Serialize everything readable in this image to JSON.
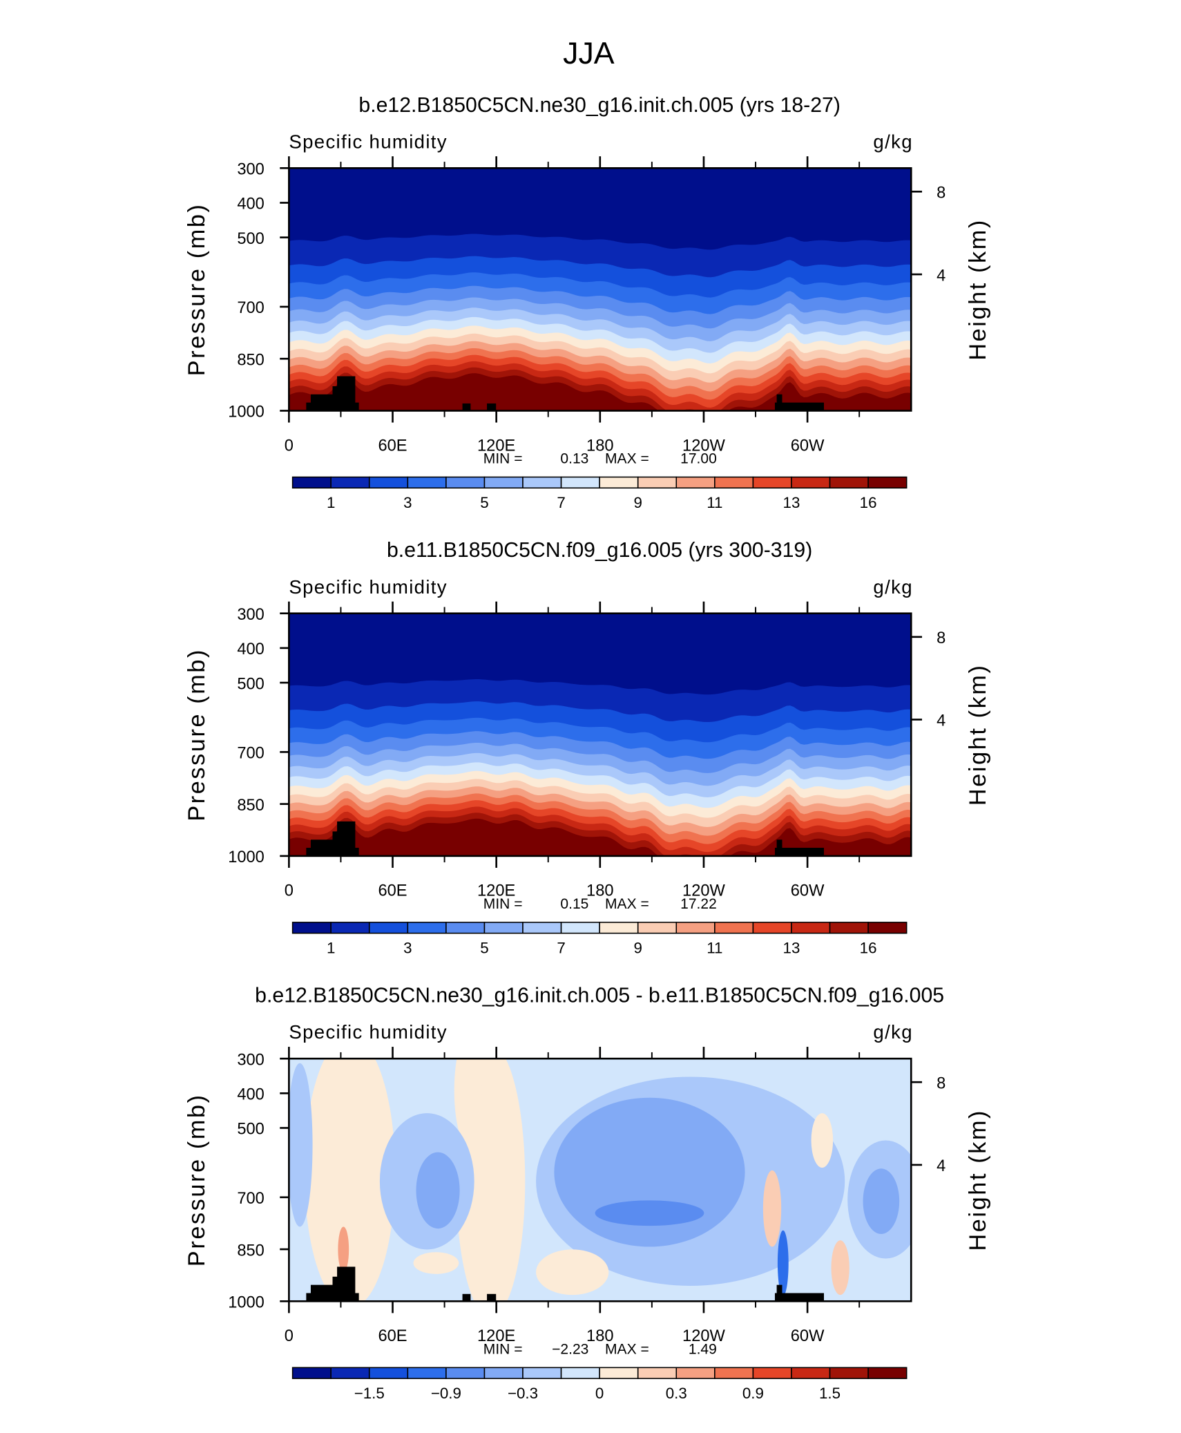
{
  "title": "JJA",
  "chart_data": [
    {
      "type": "contour",
      "title": "b.e12.B1850C5CN.ne30_g16.init.ch.005 (yrs 18-27)",
      "left_title": "Specific humidity",
      "right_title": "g/kg",
      "ylabel": "Pressure (mb)",
      "y2label": "Height (km)",
      "xlim": [
        0,
        360
      ],
      "xticks": [
        0,
        {
          "value": 60,
          "label": "60E"
        },
        {
          "value": 120,
          "label": "120E"
        },
        180,
        {
          "value": 240,
          "label": "120W"
        },
        {
          "value": 300,
          "label": "60W"
        }
      ],
      "xminorticks": [
        30,
        90,
        150,
        210,
        270,
        330
      ],
      "ylim": [
        1000,
        300
      ],
      "yticks": [
        300,
        400,
        500,
        700,
        850,
        1000
      ],
      "y2ticks": [
        8,
        4
      ],
      "min_label": "MIN =",
      "min": 0.13,
      "max_label": "MAX =",
      "max": {
        "value": 17,
        "label": "17.00"
      },
      "colorbar_colors": [
        "#000f8c",
        "#0a28b4",
        "#1450dc",
        "#2d6eeb",
        "#5a8cf0",
        "#82aaf5",
        "#aac8fa",
        "#d2e6fc",
        "#fcebd7",
        "#facdb4",
        "#f5a082",
        "#f07350",
        "#e64628",
        "#c82814",
        "#a01408",
        "#780000"
      ],
      "colorbar_levels": [
        1,
        null,
        3,
        null,
        5,
        null,
        7,
        null,
        9,
        null,
        11,
        null,
        13,
        null,
        16
      ]
    },
    {
      "type": "contour",
      "title": "b.e11.B1850C5CN.f09_g16.005 (yrs 300-319)",
      "left_title": "Specific humidity",
      "right_title": "g/kg",
      "ylabel": "Pressure (mb)",
      "y2label": "Height (km)",
      "xlim": [
        0,
        360
      ],
      "xticks": [
        0,
        {
          "value": 60,
          "label": "60E"
        },
        {
          "value": 120,
          "label": "120E"
        },
        180,
        {
          "value": 240,
          "label": "120W"
        },
        {
          "value": 300,
          "label": "60W"
        }
      ],
      "xminorticks": [
        30,
        90,
        150,
        210,
        270,
        330
      ],
      "ylim": [
        1000,
        300
      ],
      "yticks": [
        300,
        400,
        500,
        700,
        850,
        1000
      ],
      "y2ticks": [
        8,
        4
      ],
      "min_label": "MIN =",
      "min": 0.15,
      "max_label": "MAX =",
      "max": 17.22,
      "colorbar_colors": [
        "#000f8c",
        "#0a28b4",
        "#1450dc",
        "#2d6eeb",
        "#5a8cf0",
        "#82aaf5",
        "#aac8fa",
        "#d2e6fc",
        "#fcebd7",
        "#facdb4",
        "#f5a082",
        "#f07350",
        "#e64628",
        "#c82814",
        "#a01408",
        "#780000"
      ],
      "colorbar_levels": [
        1,
        null,
        3,
        null,
        5,
        null,
        7,
        null,
        9,
        null,
        11,
        null,
        13,
        null,
        16
      ]
    },
    {
      "type": "contour_diff",
      "title": "b.e12.B1850C5CN.ne30_g16.init.ch.005 - b.e11.B1850C5CN.f09_g16.005",
      "left_title": "Specific humidity",
      "right_title": "g/kg",
      "ylabel": "Pressure (mb)",
      "y2label": "Height (km)",
      "xlim": [
        0,
        360
      ],
      "xticks": [
        0,
        {
          "value": 60,
          "label": "60E"
        },
        {
          "value": 120,
          "label": "120E"
        },
        180,
        {
          "value": 240,
          "label": "120W"
        },
        {
          "value": 300,
          "label": "60W"
        }
      ],
      "xminorticks": [
        30,
        90,
        150,
        210,
        270,
        330
      ],
      "ylim": [
        1000,
        300
      ],
      "yticks": [
        300,
        400,
        500,
        700,
        850,
        1000
      ],
      "y2ticks": [
        8,
        4
      ],
      "min_label": "MIN =",
      "min": {
        "value": -2.23,
        "label": "−2.23"
      },
      "max_label": "MAX =",
      "max": 1.49,
      "colorbar_colors": [
        "#000f8c",
        "#0a28b4",
        "#1450dc",
        "#2d6eeb",
        "#5a8cf0",
        "#82aaf5",
        "#aac8fa",
        "#d2e6fc",
        "#fcebd7",
        "#facdb4",
        "#f5a082",
        "#f07350",
        "#e64628",
        "#c82814",
        "#a01408",
        "#780000"
      ],
      "colorbar_levels": [
        null,
        {
          "value": -1.5,
          "label": "−1.5"
        },
        null,
        {
          "value": -0.9,
          "label": "−0.9"
        },
        null,
        {
          "value": -0.3,
          "label": "−0.3"
        },
        null,
        0,
        null,
        0.3,
        null,
        0.9,
        null,
        1.5,
        null
      ]
    }
  ]
}
